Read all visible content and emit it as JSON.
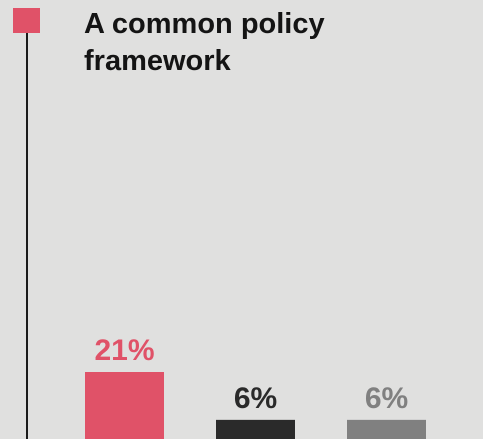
{
  "colors": {
    "background": "#e0e0df",
    "accent": "#e05268",
    "dark": "#2a2a2a",
    "gray": "#808080",
    "title": "#141414"
  },
  "chart_data": {
    "type": "bar",
    "title": "A common policy framework",
    "xlabel": "",
    "ylabel": "",
    "ylim": [
      0,
      21
    ],
    "series": [
      {
        "label": "21%",
        "values": [
          21
        ],
        "color": "#e05268"
      },
      {
        "label": "6%",
        "values": [
          6
        ],
        "color": "#2a2a2a"
      },
      {
        "label": "6%",
        "values": [
          6
        ],
        "color": "#808080"
      }
    ],
    "data_labels": [
      "21%",
      "6%",
      "6%"
    ],
    "grid": false,
    "legend": "none"
  }
}
